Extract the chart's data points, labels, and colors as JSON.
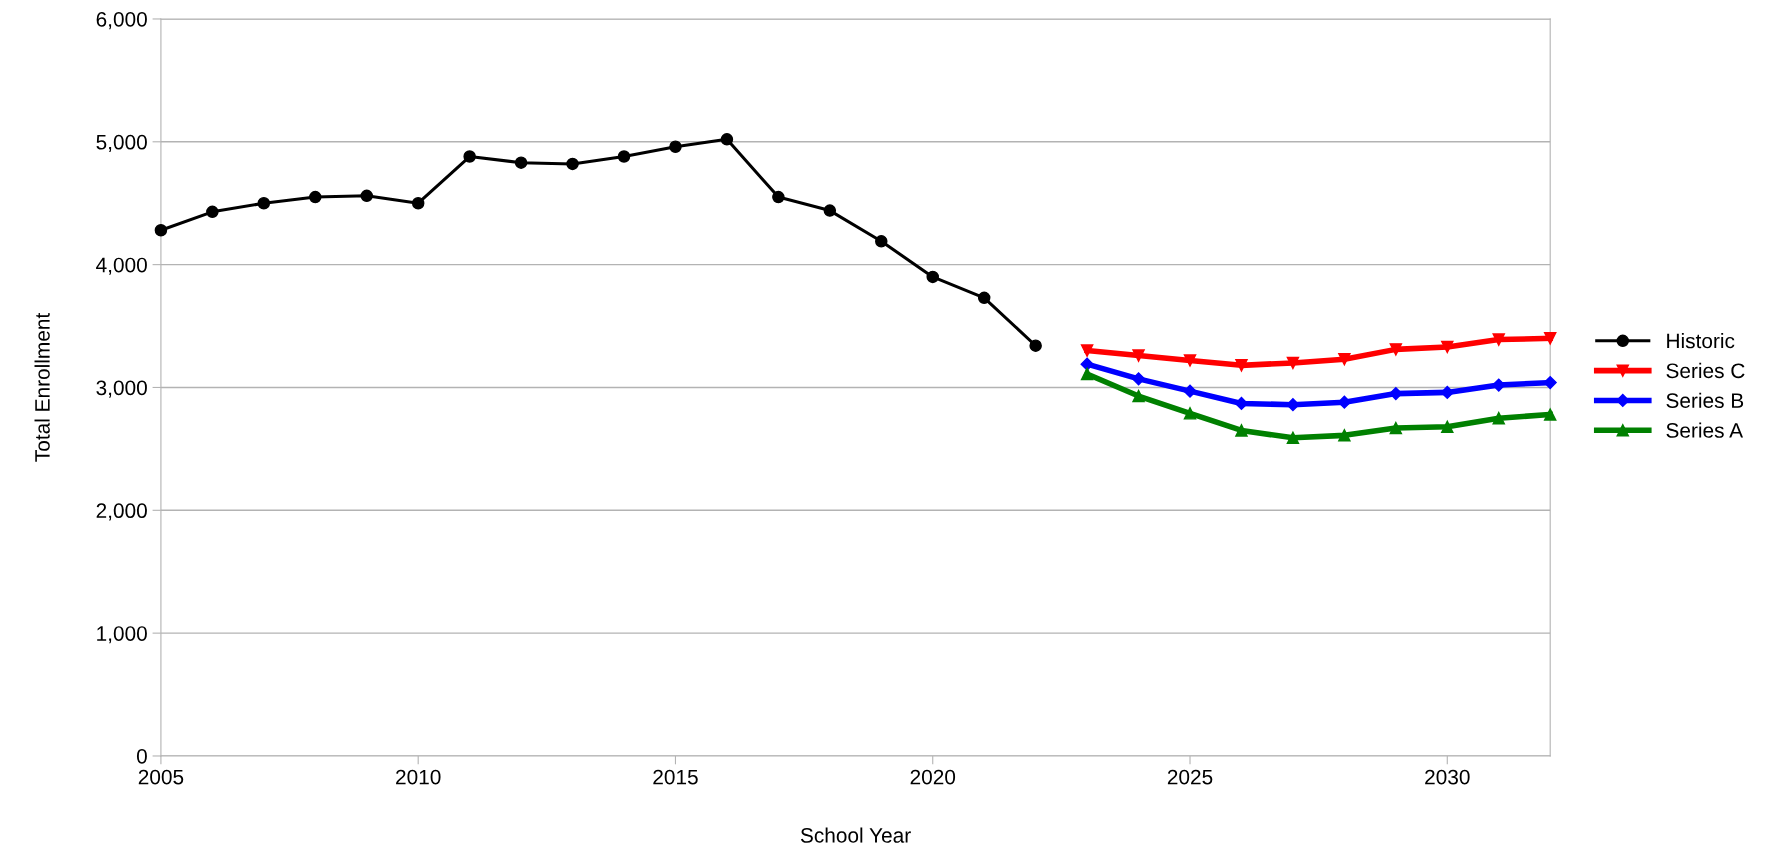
{
  "chart_data": {
    "type": "line",
    "xlabel": "School Year",
    "ylabel": "Total Enrollment",
    "xlim": [
      2005,
      2032
    ],
    "xticks": [
      2005,
      2010,
      2015,
      2020,
      2025,
      2030
    ],
    "ylim": [
      0,
      6000
    ],
    "yticks": [
      {
        "value": 0,
        "label": "0"
      },
      {
        "value": 1000,
        "label": "1,000"
      },
      {
        "value": 2000,
        "label": "2,000"
      },
      {
        "value": 3000,
        "label": "3,000"
      },
      {
        "value": 4000,
        "label": "4,000"
      },
      {
        "value": 5000,
        "label": "5,000"
      },
      {
        "value": 6000,
        "label": "6,000"
      }
    ],
    "grid": "y",
    "legend": "right",
    "line_style": "solid",
    "series": [
      {
        "name": "Historic",
        "color": "#000000",
        "marker": "circle",
        "x": [
          2005,
          2006,
          2007,
          2008,
          2009,
          2010,
          2011,
          2012,
          2013,
          2014,
          2015,
          2016,
          2017,
          2018,
          2019,
          2020,
          2021,
          2022
        ],
        "values": [
          4280,
          4430,
          4500,
          4550,
          4560,
          4500,
          4880,
          4830,
          4820,
          4880,
          4960,
          5020,
          4550,
          4440,
          4190,
          3900,
          3730,
          3340
        ]
      },
      {
        "name": "Series C",
        "color": "#ff0000",
        "marker": "triangle_down",
        "x": [
          2023,
          2024,
          2025,
          2026,
          2027,
          2028,
          2029,
          2030,
          2031,
          2032
        ],
        "values": [
          3300,
          3260,
          3220,
          3180,
          3200,
          3230,
          3310,
          3330,
          3390,
          3400
        ]
      },
      {
        "name": "Series B",
        "color": "#0000ff",
        "marker": "diamond",
        "x": [
          2023,
          2024,
          2025,
          2026,
          2027,
          2028,
          2029,
          2030,
          2031,
          2032
        ],
        "values": [
          3190,
          3070,
          2970,
          2870,
          2860,
          2880,
          2950,
          2960,
          3020,
          3040
        ]
      },
      {
        "name": "Series A",
        "color": "#008000",
        "marker": "triangle",
        "x": [
          2023,
          2024,
          2025,
          2026,
          2027,
          2028,
          2029,
          2030,
          2031,
          2032
        ],
        "values": [
          3110,
          2930,
          2790,
          2650,
          2590,
          2610,
          2670,
          2680,
          2750,
          2780
        ]
      }
    ]
  }
}
